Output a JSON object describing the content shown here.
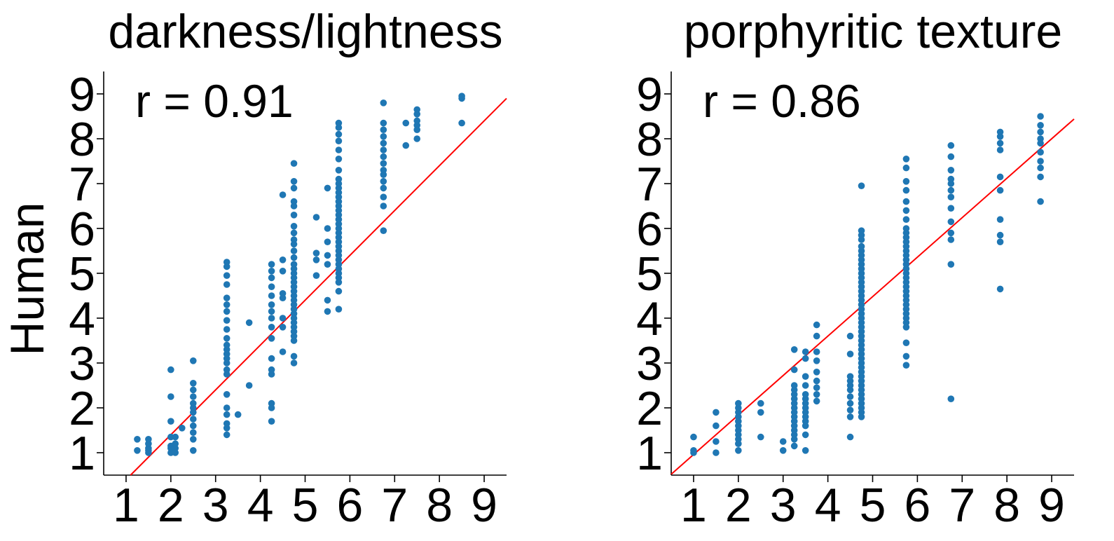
{
  "chart_data": [
    {
      "type": "scatter",
      "title": "darkness/lightness",
      "xlabel": "",
      "ylabel": "Human",
      "annotation": "r = 0.91",
      "xlim": [
        0.5,
        9.5
      ],
      "ylim": [
        0.5,
        9.5
      ],
      "xticks": [
        "1",
        "2",
        "3",
        "4",
        "5",
        "6",
        "7",
        "8",
        "9"
      ],
      "yticks": [
        "1",
        "2",
        "3",
        "4",
        "5",
        "6",
        "7",
        "8",
        "9"
      ],
      "grid": false,
      "point_color": "#1f77b4",
      "line_color": "#ff0000",
      "fit_line": {
        "slope": 1.0,
        "intercept": -0.6
      },
      "points": [
        {
          "x": 1.25,
          "y": [
            1.05,
            1.3
          ]
        },
        {
          "x": 1.5,
          "y": [
            1.0,
            1.05,
            1.1,
            1.2,
            1.3
          ]
        },
        {
          "x": 2.0,
          "y": [
            1.0,
            1.1,
            1.15,
            1.35,
            1.7,
            2.25,
            2.85
          ]
        },
        {
          "x": 2.1,
          "y": [
            1.0,
            1.1,
            1.2,
            1.35
          ]
        },
        {
          "x": 2.25,
          "y": [
            1.55
          ]
        },
        {
          "x": 2.5,
          "y": [
            1.05,
            1.3,
            1.45,
            1.6,
            1.75,
            1.9,
            2.0,
            2.1,
            2.25,
            2.4,
            2.55,
            3.05
          ]
        },
        {
          "x": 3.25,
          "y": [
            1.4,
            1.55,
            1.65,
            1.85,
            2.0,
            2.3,
            2.75,
            2.85,
            3.0,
            3.1,
            3.2,
            3.3,
            3.4,
            3.55,
            3.75,
            3.95,
            4.15,
            4.3,
            4.45,
            4.75,
            4.95,
            5.15,
            5.25
          ]
        },
        {
          "x": 3.5,
          "y": [
            1.85
          ]
        },
        {
          "x": 3.75,
          "y": [
            2.5,
            3.9
          ]
        },
        {
          "x": 4.25,
          "y": [
            1.7,
            2.0,
            2.1,
            2.75,
            2.85,
            3.1,
            3.55,
            3.8,
            4.0,
            4.15,
            4.3,
            4.5,
            4.7,
            4.9,
            5.05,
            5.2
          ]
        },
        {
          "x": 4.5,
          "y": [
            3.25,
            3.8,
            4.0,
            4.45,
            4.55,
            5.05,
            5.3,
            6.75
          ]
        },
        {
          "x": 4.75,
          "y": [
            3.0,
            3.15,
            3.5,
            3.6,
            3.7,
            3.8,
            3.9,
            4.0,
            4.1,
            4.2,
            4.3,
            4.4,
            4.5,
            4.6,
            4.7,
            4.8,
            4.9,
            5.0,
            5.1,
            5.2,
            5.35,
            5.5,
            5.65,
            5.75,
            5.9,
            6.05,
            6.3,
            6.5,
            6.6,
            6.9,
            7.05,
            7.45
          ]
        },
        {
          "x": 5.25,
          "y": [
            4.95,
            5.3,
            5.45,
            6.25
          ]
        },
        {
          "x": 5.5,
          "y": [
            4.15,
            4.4,
            5.2,
            5.4,
            5.7,
            6.0,
            6.9
          ]
        },
        {
          "x": 5.75,
          "y": [
            4.2,
            4.6,
            4.8,
            4.9,
            5.0,
            5.1,
            5.2,
            5.3,
            5.4,
            5.5,
            5.6,
            5.7,
            5.8,
            5.9,
            6.0,
            6.1,
            6.2,
            6.3,
            6.4,
            6.5,
            6.6,
            6.7,
            6.8,
            6.9,
            7.0,
            7.1,
            7.3,
            7.55,
            7.75,
            7.95,
            8.1,
            8.25,
            8.35
          ]
        },
        {
          "x": 6.75,
          "y": [
            5.95,
            6.5,
            6.7,
            6.9,
            7.05,
            7.2,
            7.3,
            7.45,
            7.6,
            7.75,
            7.9,
            8.05,
            8.2,
            8.35,
            8.8
          ]
        },
        {
          "x": 7.25,
          "y": [
            7.85,
            8.35
          ]
        },
        {
          "x": 7.5,
          "y": [
            8.0,
            8.2,
            8.3,
            8.4,
            8.55,
            8.65
          ]
        },
        {
          "x": 8.5,
          "y": [
            8.35,
            8.9,
            8.95
          ]
        }
      ]
    },
    {
      "type": "scatter",
      "title": "porphyritic texture",
      "xlabel": "",
      "ylabel": "",
      "annotation": "r = 0.86",
      "xlim": [
        0.5,
        9.5
      ],
      "ylim": [
        0.5,
        9.5
      ],
      "xticks": [
        "1",
        "2",
        "3",
        "4",
        "5",
        "6",
        "7",
        "8",
        "9"
      ],
      "yticks": [
        "1",
        "2",
        "3",
        "4",
        "5",
        "6",
        "7",
        "8",
        "9"
      ],
      "grid": false,
      "point_color": "#1f77b4",
      "line_color": "#ff0000",
      "fit_line": {
        "slope": 0.88,
        "intercept": 0.08
      },
      "points": [
        {
          "x": 1.0,
          "y": [
            1.0,
            1.05,
            1.35
          ]
        },
        {
          "x": 1.5,
          "y": [
            1.0,
            1.25,
            1.6,
            1.9
          ]
        },
        {
          "x": 2.0,
          "y": [
            1.05,
            1.2,
            1.3,
            1.4,
            1.5,
            1.6,
            1.7,
            1.8,
            1.9,
            2.0,
            2.1
          ]
        },
        {
          "x": 2.5,
          "y": [
            1.35,
            1.9,
            2.1
          ]
        },
        {
          "x": 3.0,
          "y": [
            1.05,
            1.25
          ]
        },
        {
          "x": 3.25,
          "y": [
            1.15,
            1.3,
            1.4,
            1.5,
            1.6,
            1.7,
            1.8,
            1.9,
            2.0,
            2.1,
            2.2,
            2.3,
            2.4,
            2.5,
            2.85,
            3.3
          ]
        },
        {
          "x": 3.5,
          "y": [
            1.05,
            1.4,
            1.6,
            1.7,
            1.8,
            1.9,
            2.0,
            2.1,
            2.2,
            2.3,
            2.5,
            2.7,
            3.1,
            3.25
          ]
        },
        {
          "x": 3.75,
          "y": [
            2.15,
            2.3,
            2.45,
            2.6,
            2.8,
            3.05,
            3.25,
            3.6,
            3.85
          ]
        },
        {
          "x": 4.5,
          "y": [
            1.35,
            1.8,
            1.95,
            2.1,
            2.25,
            2.4,
            2.5,
            2.6,
            2.7,
            3.2,
            3.6
          ]
        },
        {
          "x": 4.75,
          "y": [
            1.8,
            1.9,
            2.0,
            2.1,
            2.2,
            2.3,
            2.4,
            2.5,
            2.6,
            2.7,
            2.8,
            2.9,
            3.0,
            3.1,
            3.2,
            3.3,
            3.4,
            3.5,
            3.6,
            3.7,
            3.8,
            3.9,
            4.0,
            4.1,
            4.2,
            4.3,
            4.4,
            4.5,
            4.6,
            4.7,
            4.8,
            4.9,
            5.0,
            5.1,
            5.2,
            5.3,
            5.4,
            5.5,
            5.6,
            5.75,
            5.85,
            5.95,
            6.95
          ]
        },
        {
          "x": 5.75,
          "y": [
            2.95,
            3.15,
            3.45,
            3.8,
            3.9,
            4.0,
            4.1,
            4.2,
            4.3,
            4.4,
            4.5,
            4.6,
            4.7,
            4.8,
            4.9,
            5.0,
            5.1,
            5.2,
            5.3,
            5.4,
            5.5,
            5.6,
            5.7,
            5.8,
            5.9,
            6.0,
            6.2,
            6.4,
            6.6,
            6.85,
            7.05,
            7.35,
            7.55
          ]
        },
        {
          "x": 6.75,
          "y": [
            2.2,
            5.2,
            5.75,
            5.9,
            6.15,
            6.45,
            6.7,
            6.85,
            7.0,
            7.1,
            7.3,
            7.6,
            7.85
          ]
        },
        {
          "x": 7.85,
          "y": [
            4.65,
            5.7,
            5.85,
            6.2,
            6.85,
            7.15,
            7.75,
            7.9,
            8.05,
            8.15
          ]
        },
        {
          "x": 8.75,
          "y": [
            6.6,
            7.15,
            7.35,
            7.5,
            7.7,
            7.9,
            8.0,
            8.15,
            8.3,
            8.5
          ]
        }
      ]
    }
  ]
}
